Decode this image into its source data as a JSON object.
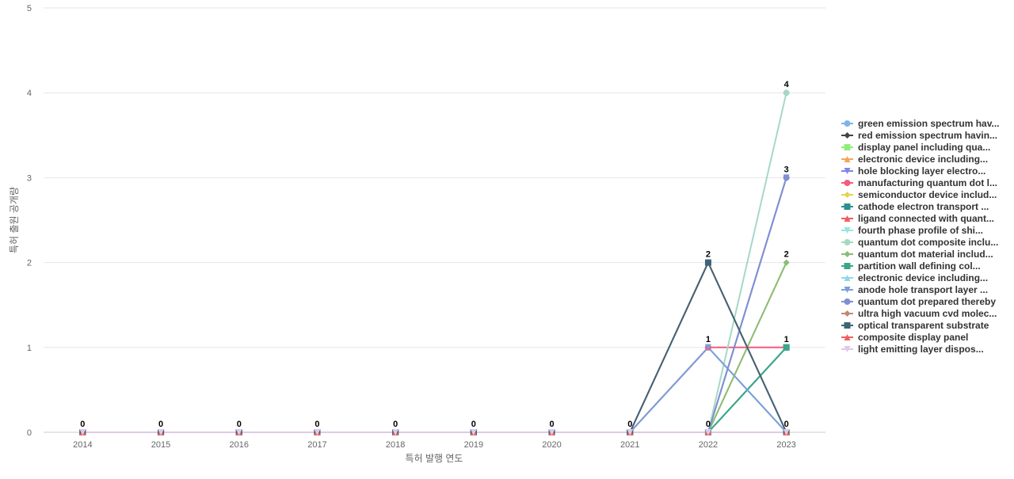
{
  "chart_data": {
    "type": "line",
    "x_label": "특허 발행 연도",
    "y_label": "특허 출원 공개량",
    "categories": [
      "2014",
      "2015",
      "2016",
      "2017",
      "2018",
      "2019",
      "2020",
      "2021",
      "2022",
      "2023"
    ],
    "ylim": [
      0,
      5
    ],
    "yticks": [
      0,
      1,
      2,
      3,
      4,
      5
    ],
    "grid": true,
    "legend": "right",
    "series": [
      {
        "name": "green emission spectrum hav...",
        "color": "#7cb5ec",
        "values": [
          0,
          0,
          0,
          0,
          0,
          0,
          0,
          0,
          1,
          0
        ]
      },
      {
        "name": "red emission spectrum havin...",
        "color": "#434348",
        "values": [
          0,
          0,
          0,
          0,
          0,
          0,
          0,
          0,
          0,
          0
        ]
      },
      {
        "name": "display panel including qua...",
        "color": "#90ed7d",
        "values": [
          0,
          0,
          0,
          0,
          0,
          0,
          0,
          0,
          0,
          0
        ]
      },
      {
        "name": "electronic device including...",
        "color": "#f7a35c",
        "values": [
          0,
          0,
          0,
          0,
          0,
          0,
          0,
          0,
          0,
          0
        ]
      },
      {
        "name": "hole blocking layer electro...",
        "color": "#8085e9",
        "values": [
          0,
          0,
          0,
          0,
          0,
          0,
          0,
          0,
          0,
          3
        ]
      },
      {
        "name": "manufacturing quantum dot l...",
        "color": "#f15c80",
        "values": [
          0,
          0,
          0,
          0,
          0,
          0,
          0,
          0,
          1,
          1
        ]
      },
      {
        "name": "semiconductor device includ...",
        "color": "#e4d354",
        "values": [
          0,
          0,
          0,
          0,
          0,
          0,
          0,
          0,
          0,
          2
        ]
      },
      {
        "name": "cathode electron transport ...",
        "color": "#2b908f",
        "values": [
          0,
          0,
          0,
          0,
          0,
          0,
          0,
          0,
          0,
          1
        ]
      },
      {
        "name": "ligand connected with quant...",
        "color": "#f45b5b",
        "values": [
          0,
          0,
          0,
          0,
          0,
          0,
          0,
          0,
          2,
          0
        ]
      },
      {
        "name": "fourth phase profile of shi...",
        "color": "#91e8e1",
        "values": [
          0,
          0,
          0,
          0,
          0,
          0,
          0,
          0,
          0,
          0
        ]
      },
      {
        "name": "quantum dot composite inclu...",
        "color": "#a6d8c4",
        "values": [
          0,
          0,
          0,
          0,
          0,
          0,
          0,
          0,
          0,
          4
        ]
      },
      {
        "name": "quantum dot material includ...",
        "color": "#8bbc7a",
        "values": [
          0,
          0,
          0,
          0,
          0,
          0,
          0,
          0,
          0,
          2
        ]
      },
      {
        "name": "partition wall defining col...",
        "color": "#3aa68a",
        "values": [
          0,
          0,
          0,
          0,
          0,
          0,
          0,
          0,
          0,
          1
        ]
      },
      {
        "name": "electronic device including...",
        "color": "#8fd8e8",
        "values": [
          0,
          0,
          0,
          0,
          0,
          0,
          0,
          0,
          0,
          0
        ]
      },
      {
        "name": "anode hole transport layer ...",
        "color": "#7b9fd8",
        "values": [
          0,
          0,
          0,
          0,
          0,
          0,
          0,
          0,
          1,
          0
        ]
      },
      {
        "name": "quantum dot prepared thereby",
        "color": "#7f8fd0",
        "values": [
          0,
          0,
          0,
          0,
          0,
          0,
          0,
          0,
          0,
          3
        ]
      },
      {
        "name": "ultra high vacuum cvd molec...",
        "color": "#c08a70",
        "values": [
          0,
          0,
          0,
          0,
          0,
          0,
          0,
          0,
          0,
          0
        ]
      },
      {
        "name": "optical transparent substrate",
        "color": "#3d6478",
        "values": [
          0,
          0,
          0,
          0,
          0,
          0,
          0,
          0,
          2,
          0
        ]
      },
      {
        "name": "composite display panel",
        "color": "#f06060",
        "values": [
          0,
          0,
          0,
          0,
          0,
          0,
          0,
          0,
          0,
          0
        ]
      },
      {
        "name": "light emitting layer dispos...",
        "color": "#e0c8e8",
        "values": [
          0,
          0,
          0,
          0,
          0,
          0,
          0,
          0,
          0,
          0
        ]
      }
    ]
  }
}
